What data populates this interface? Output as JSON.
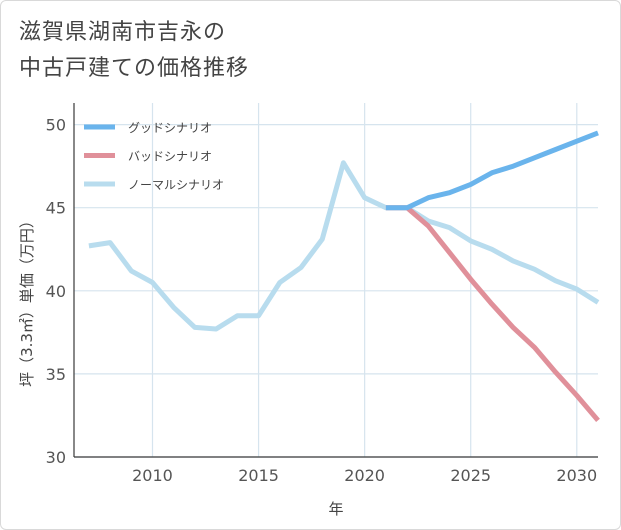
{
  "title": {
    "line1": "滋賀県湖南市吉永の",
    "line2": "中古戸建ての価格推移"
  },
  "chart_data": {
    "type": "line",
    "xlabel": "年",
    "ylabel": "坪（3.3㎡）単価（万円）",
    "xlim": [
      2006.3,
      2031
    ],
    "ylim": [
      30,
      51.3
    ],
    "x_ticks": [
      2010,
      2015,
      2020,
      2025,
      2030
    ],
    "y_ticks": [
      30,
      35,
      40,
      45,
      50
    ],
    "grid": true,
    "legend_position": "top-left",
    "series": [
      {
        "name": "グッドシナリオ",
        "color": "#6ab4ec",
        "points": [
          [
            2021,
            45.0
          ],
          [
            2022,
            45.0
          ],
          [
            2023,
            45.6
          ],
          [
            2024,
            45.9
          ],
          [
            2025,
            46.4
          ],
          [
            2026,
            47.1
          ],
          [
            2027,
            47.5
          ],
          [
            2028,
            48.0
          ],
          [
            2029,
            48.5
          ],
          [
            2030,
            49.0
          ],
          [
            2031,
            49.5
          ]
        ]
      },
      {
        "name": "バッドシナリオ",
        "color": "#e0909a",
        "points": [
          [
            2021,
            45.0
          ],
          [
            2022,
            45.0
          ],
          [
            2023,
            43.9
          ],
          [
            2024,
            42.3
          ],
          [
            2025,
            40.7
          ],
          [
            2026,
            39.2
          ],
          [
            2027,
            37.8
          ],
          [
            2028,
            36.6
          ],
          [
            2029,
            35.1
          ],
          [
            2030,
            33.7
          ],
          [
            2031,
            32.2
          ]
        ]
      },
      {
        "name": "ノーマルシナリオ",
        "color": "#b8dcee",
        "points": [
          [
            2007,
            42.7
          ],
          [
            2008,
            42.9
          ],
          [
            2009,
            41.2
          ],
          [
            2010,
            40.5
          ],
          [
            2011,
            39.0
          ],
          [
            2012,
            37.8
          ],
          [
            2013,
            37.7
          ],
          [
            2014,
            38.5
          ],
          [
            2015,
            38.5
          ],
          [
            2016,
            40.5
          ],
          [
            2017,
            41.4
          ],
          [
            2018,
            43.1
          ],
          [
            2019,
            47.7
          ],
          [
            2020,
            45.6
          ],
          [
            2021,
            45.0
          ],
          [
            2022,
            45.0
          ],
          [
            2023,
            44.2
          ],
          [
            2024,
            43.8
          ],
          [
            2025,
            43.0
          ],
          [
            2026,
            42.5
          ],
          [
            2027,
            41.8
          ],
          [
            2028,
            41.3
          ],
          [
            2029,
            40.6
          ],
          [
            2030,
            40.1
          ],
          [
            2031,
            39.3
          ]
        ]
      }
    ]
  }
}
